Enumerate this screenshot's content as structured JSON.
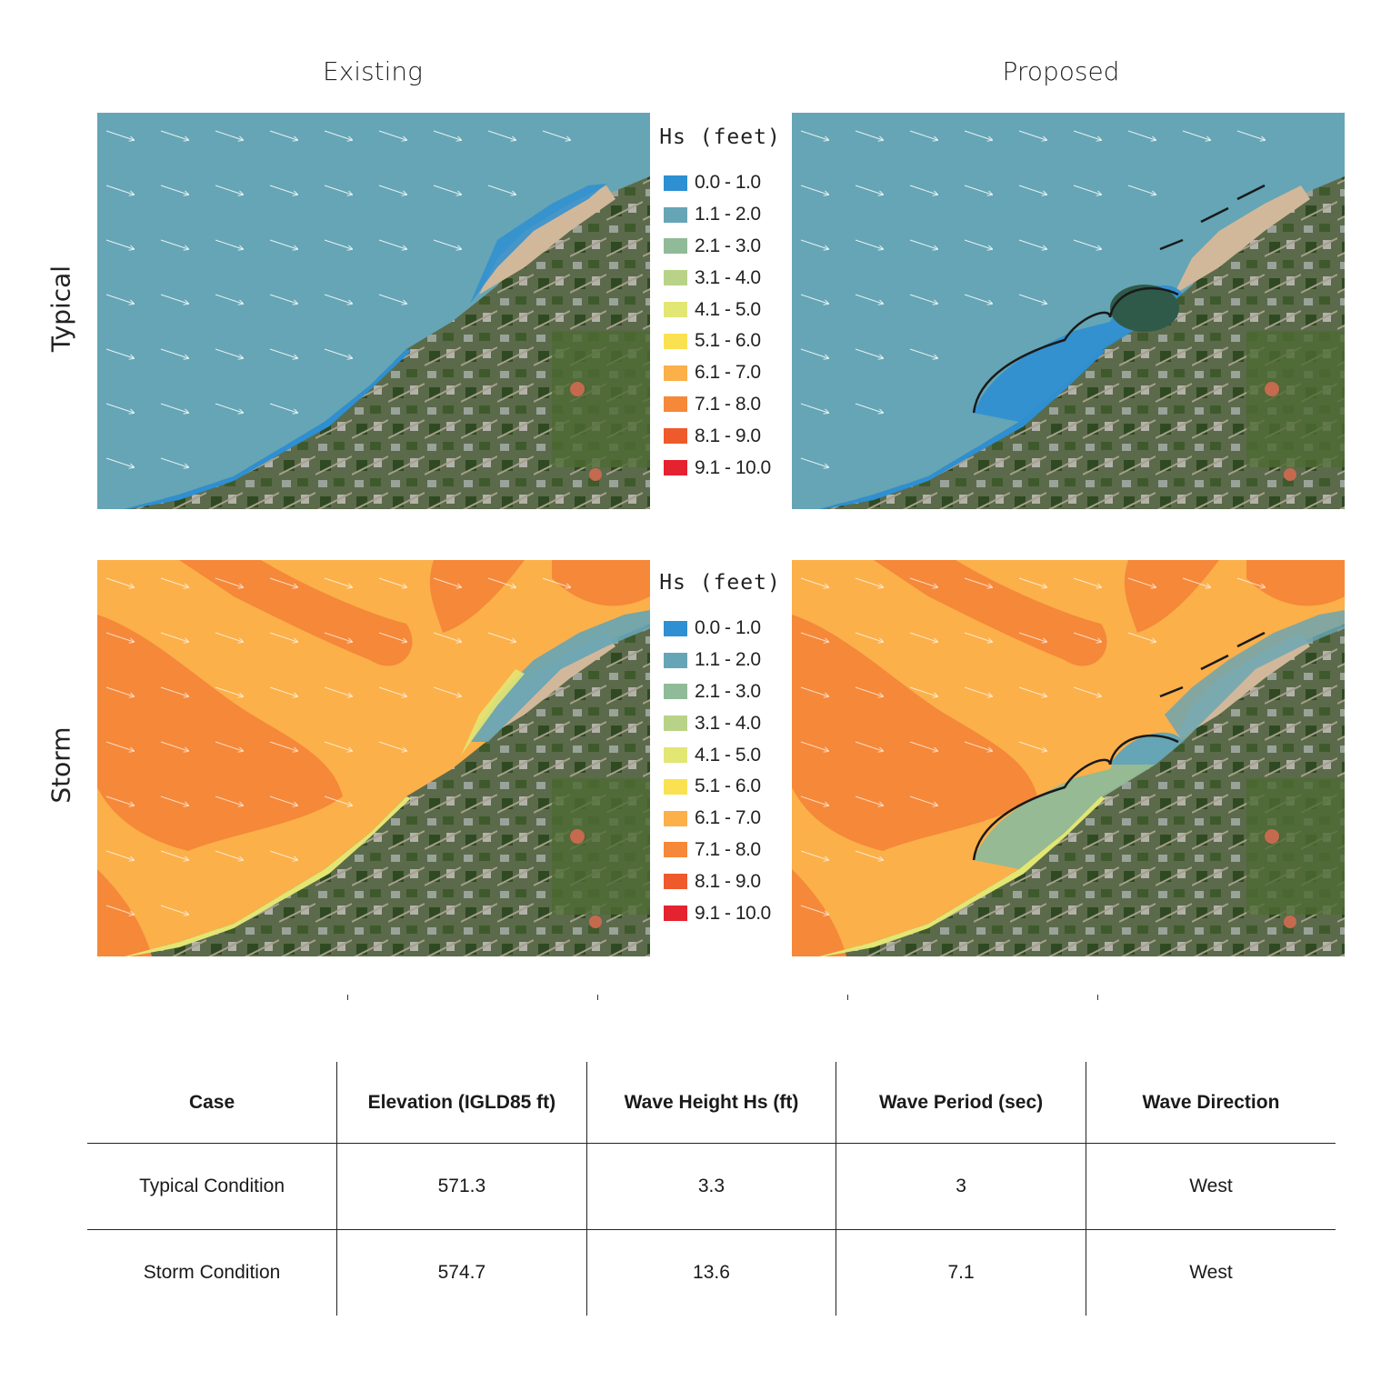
{
  "column_titles": {
    "existing": "Existing",
    "proposed": "Proposed"
  },
  "row_titles": {
    "typical": "Typical",
    "storm": "Storm"
  },
  "legend": {
    "title": "Hs (feet)",
    "items": [
      {
        "label": "0.0 - 1.0",
        "color": "#2e8fd2"
      },
      {
        "label": "1.1 - 2.0",
        "color": "#65a5b5"
      },
      {
        "label": "2.1 - 3.0",
        "color": "#8fbb98"
      },
      {
        "label": "3.1 - 4.0",
        "color": "#b8d387"
      },
      {
        "label": "4.1 - 5.0",
        "color": "#e2e673"
      },
      {
        "label": "5.1 - 6.0",
        "color": "#fae152"
      },
      {
        "label": "6.1 - 7.0",
        "color": "#fbb04a"
      },
      {
        "label": "7.1 - 8.0",
        "color": "#f58839"
      },
      {
        "label": "8.1 - 9.0",
        "color": "#ee5a2c"
      },
      {
        "label": "9.1 - 10.0",
        "color": "#e52230"
      }
    ]
  },
  "maps": {
    "wave_arrow_direction": "West (arrows pointing east-southeast onshore)",
    "typical_existing_dominant_band": "1.1 - 2.0",
    "typical_proposed_dominant_band": "1.1 - 2.0",
    "storm_existing_dominant_band": "6.1 - 7.0",
    "storm_proposed_dominant_band": "6.1 - 7.0"
  },
  "table": {
    "headers": [
      "Case",
      "Elevation (IGLD85 ft)",
      "Wave Height Hs (ft)",
      "Wave Period (sec)",
      "Wave Direction"
    ],
    "rows": [
      [
        "Typical Condition",
        "571.3",
        "3.3",
        "3",
        "West"
      ],
      [
        "Storm Condition",
        "574.7",
        "13.6",
        "7.1",
        "West"
      ]
    ]
  }
}
